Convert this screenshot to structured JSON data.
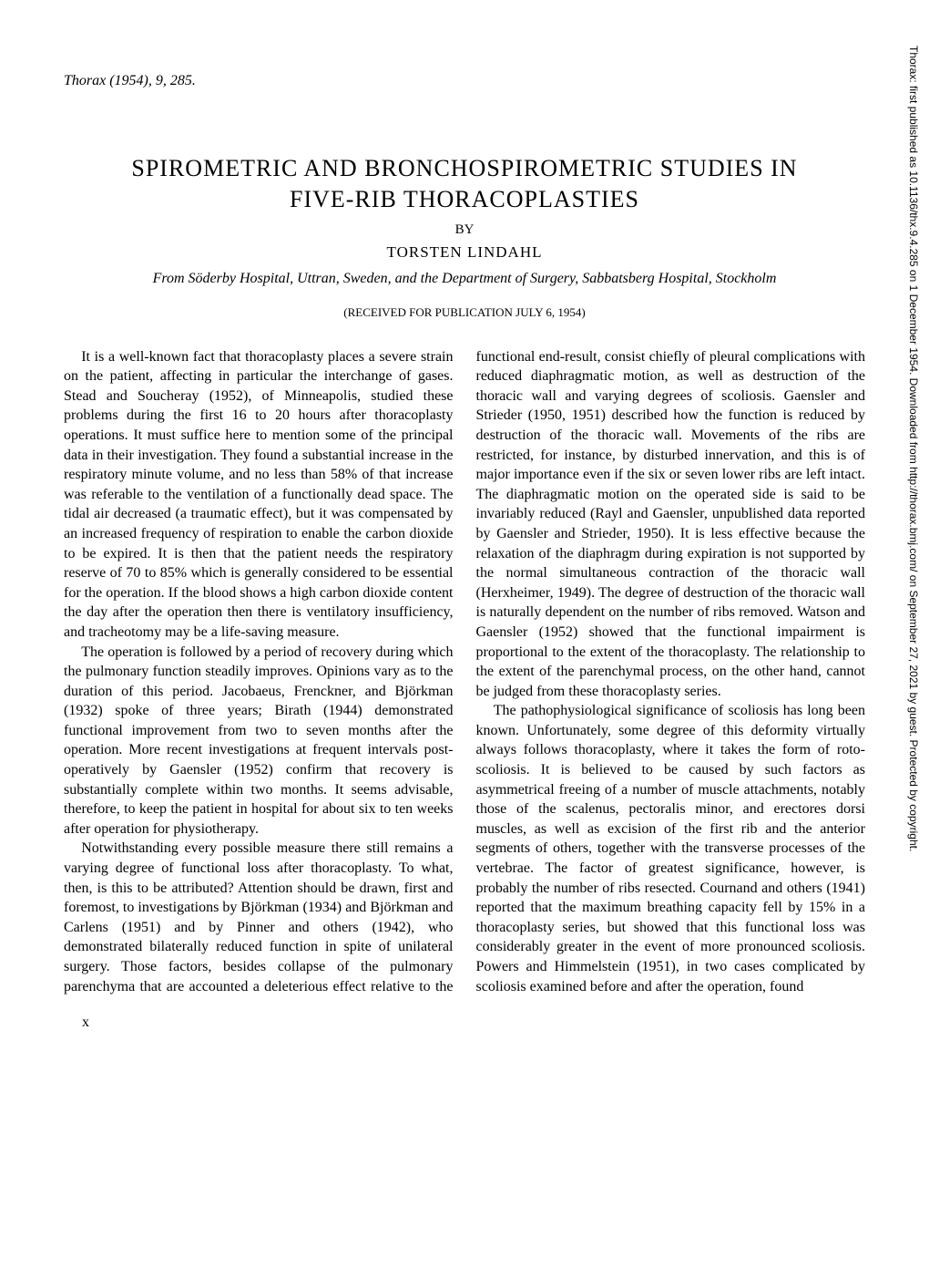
{
  "citation": "Thorax (1954), 9, 285.",
  "title_line1": "SPIROMETRIC AND BRONCHOSPIROMETRIC STUDIES IN",
  "title_line2": "FIVE-RIB THORACOPLASTIES",
  "by": "BY",
  "author": "TORSTEN LINDAHL",
  "affiliation": "From Söderby Hospital, Uttran, Sweden, and the Department of Surgery, Sabbatsberg Hospital, Stockholm",
  "received": "(RECEIVED FOR PUBLICATION JULY 6, 1954)",
  "paragraphs": [
    "It is a well-known fact that thoracoplasty places a severe strain on the patient, affecting in particular the interchange of gases. Stead and Soucheray (1952), of Minneapolis, studied these problems during the first 16 to 20 hours after thoracoplasty operations. It must suffice here to mention some of the principal data in their investigation. They found a substantial increase in the respiratory minute volume, and no less than 58% of that increase was referable to the ventilation of a functionally dead space. The tidal air decreased (a traumatic effect), but it was compensated by an increased frequency of respiration to enable the carbon dioxide to be expired. It is then that the patient needs the respiratory reserve of 70 to 85% which is generally considered to be essential for the operation. If the blood shows a high carbon dioxide content the day after the operation then there is ventilatory insufficiency, and tracheotomy may be a life-saving measure.",
    "The operation is followed by a period of recovery during which the pulmonary function steadily improves. Opinions vary as to the duration of this period. Jacobaeus, Frenckner, and Björkman (1932) spoke of three years; Birath (1944) demonstrated functional improvement from two to seven months after the operation. More recent investigations at frequent intervals post-operatively by Gaensler (1952) confirm that recovery is substantially complete within two months. It seems advisable, therefore, to keep the patient in hospital for about six to ten weeks after operation for physiotherapy.",
    "Notwithstanding every possible measure there still remains a varying degree of functional loss after thoracoplasty. To what, then, is this to be attributed? Attention should be drawn, first and foremost, to investigations by Björkman (1934) and Björkman and Carlens (1951) and by Pinner and others (1942), who demonstrated bilaterally reduced function in spite of unilateral surgery. Those factors, besides collapse of the pulmonary parenchyma that are accounted a deleterious effect relative to the functional end-result, consist chiefly of pleural complications with reduced diaphragmatic motion, as well as destruction of the thoracic wall and varying degrees of scoliosis. Gaensler and Strieder (1950, 1951) described how the function is reduced by destruction of the thoracic wall. Movements of the ribs are restricted, for instance, by disturbed innervation, and this is of major importance even if the six or seven lower ribs are left intact. The diaphragmatic motion on the operated side is said to be invariably reduced (Rayl and Gaensler, unpublished data reported by Gaensler and Strieder, 1950). It is less effective because the relaxation of the diaphragm during expiration is not supported by the normal simultaneous contraction of the thoracic wall (Herxheimer, 1949). The degree of destruction of the thoracic wall is naturally dependent on the number of ribs removed. Watson and Gaensler (1952) showed that the functional impairment is proportional to the extent of the thoracoplasty. The relationship to the extent of the parenchymal process, on the other hand, cannot be judged from these thoracoplasty series.",
    "The pathophysiological significance of scoliosis has long been known. Unfortunately, some degree of this deformity virtually always follows thoracoplasty, where it takes the form of roto-scoliosis. It is believed to be caused by such factors as asymmetrical freeing of a number of muscle attachments, notably those of the scalenus, pectoralis minor, and erectores dorsi muscles, as well as excision of the first rib and the anterior segments of others, together with the transverse processes of the vertebrae. The factor of greatest significance, however, is probably the number of ribs resected. Cournand and others (1941) reported that the maximum breathing capacity fell by 15% in a thoracoplasty series, but showed that this functional loss was considerably greater in the event of more pronounced scoliosis. Powers and Himmelstein (1951), in two cases complicated by scoliosis examined before and after the operation, found"
  ],
  "sidebar": "Thorax: first published as 10.1136/thx.9.4.285 on 1 December 1954. Downloaded from http://thorax.bmj.com/ on September 27, 2021 by guest. Protected by copyright.",
  "page_marker": "x"
}
